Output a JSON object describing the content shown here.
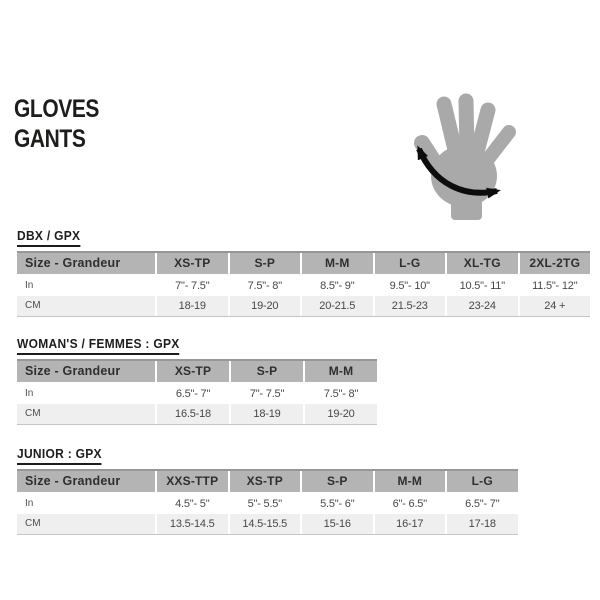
{
  "title": {
    "line1": "GLOVES",
    "line2": "GANTS"
  },
  "hand_illustration": {
    "name": "hand-circumference-measurement",
    "colors": {
      "hand": "#a9a9a9",
      "arrow": "#0d0d0d"
    }
  },
  "colors": {
    "page_bg": "#ffffff",
    "text": "#1d1d1b",
    "table_header_bg": "#b4b4b4",
    "header_text": "#2f2f2f",
    "row_alt_bg": "#efefef",
    "table_top_border": "#979797",
    "table_bottom_border": "#c5c5c5",
    "cell_text": "#474747",
    "label_text": "#4f4f4f"
  },
  "tables": [
    {
      "heading": "DBX / GPX",
      "label_header": "Size - Grandeur",
      "size_headers": [
        "XS-TP",
        "S-P",
        "M-M",
        "L-G",
        "XL-TG",
        "2XL-2TG"
      ],
      "rows": [
        {
          "label": "In",
          "values": [
            "7\"- 7.5\"",
            "7.5\"- 8\"",
            "8.5\"- 9\"",
            "9.5\"- 10\"",
            "10.5\"- 11\"",
            "11.5\"- 12\""
          ]
        },
        {
          "label": "CM",
          "values": [
            "18-19",
            "19-20",
            "20-21.5",
            "21.5-23",
            "23-24",
            "24 +"
          ]
        }
      ]
    },
    {
      "heading": "WOMAN'S / FEMMES : GPX",
      "label_header": "Size - Grandeur",
      "size_headers": [
        "XS-TP",
        "S-P",
        "M-M"
      ],
      "rows": [
        {
          "label": "In",
          "values": [
            "6.5\"- 7\"",
            "7\"- 7.5\"",
            "7.5\"- 8\""
          ]
        },
        {
          "label": "CM",
          "values": [
            "16.5-18",
            "18-19",
            "19-20"
          ]
        }
      ]
    },
    {
      "heading": "JUNIOR : GPX",
      "label_header": "Size - Grandeur",
      "size_headers": [
        "XXS-TTP",
        "XS-TP",
        "S-P",
        "M-M",
        "L-G"
      ],
      "rows": [
        {
          "label": "In",
          "values": [
            "4.5\"- 5\"",
            "5\"- 5.5\"",
            "5.5\"- 6\"",
            "6\"- 6.5\"",
            "6.5\"- 7\""
          ]
        },
        {
          "label": "CM",
          "values": [
            "13.5-14.5",
            "14.5-15.5",
            "15-16",
            "16-17",
            "17-18"
          ]
        }
      ]
    }
  ]
}
